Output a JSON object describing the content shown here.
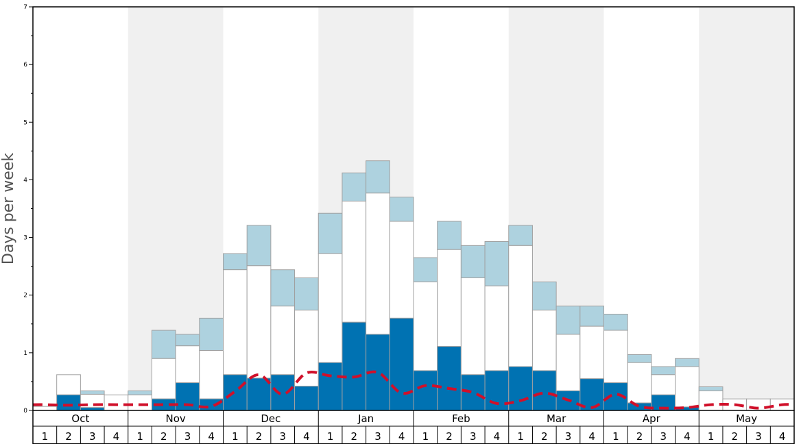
{
  "chart_data": {
    "type": "bar",
    "ylabel": "Days per week",
    "ylim": [
      0,
      7
    ],
    "yticks": [
      "0",
      "1",
      "2",
      "3",
      "4",
      "5",
      "6",
      "7"
    ],
    "months": [
      "Oct",
      "Nov",
      "Dec",
      "Jan",
      "Feb",
      "Mar",
      "Apr",
      "May"
    ],
    "week_labels": [
      "1",
      "2",
      "3",
      "4"
    ],
    "series": [
      {
        "values": [
          0.0,
          0.27,
          0.05,
          0.0,
          0.0,
          0.2,
          0.48,
          0.2,
          0.62,
          0.56,
          0.62,
          0.42,
          0.83,
          1.53,
          1.32,
          1.6,
          0.69,
          1.11,
          0.62,
          0.69,
          0.76,
          0.69,
          0.34,
          0.55,
          0.48,
          0.13,
          0.27,
          0.06,
          0.0,
          0.0,
          0.0,
          0.0
        ]
      },
      {
        "values": [
          0.07,
          0.62,
          0.28,
          0.27,
          0.27,
          0.9,
          1.12,
          1.04,
          2.44,
          2.51,
          1.81,
          1.74,
          2.72,
          3.63,
          3.77,
          3.28,
          2.23,
          2.79,
          2.3,
          2.16,
          2.86,
          1.74,
          1.32,
          1.46,
          1.39,
          0.83,
          0.62,
          0.76,
          0.34,
          0.2,
          0.2,
          0.2
        ]
      },
      {
        "values": [
          0.07,
          0.62,
          0.34,
          0.27,
          0.34,
          1.39,
          1.32,
          1.6,
          2.72,
          3.21,
          2.44,
          2.3,
          3.42,
          4.12,
          4.33,
          3.7,
          2.65,
          3.28,
          2.86,
          2.93,
          3.21,
          2.23,
          1.81,
          1.81,
          1.67,
          0.97,
          0.76,
          0.9,
          0.41,
          0.2,
          0.2,
          0.2
        ]
      },
      {
        "values": [
          0.1,
          0.09,
          0.1,
          0.1,
          0.1,
          0.1,
          0.1,
          0.07,
          0.33,
          0.62,
          0.28,
          0.65,
          0.6,
          0.58,
          0.66,
          0.3,
          0.43,
          0.38,
          0.31,
          0.12,
          0.17,
          0.3,
          0.18,
          0.05,
          0.28,
          0.07,
          0.04,
          0.05,
          0.1,
          0.1,
          0.04,
          0.1
        ]
      }
    ],
    "colors": {
      "low_fill": "#0072b2",
      "mid_fill": "#ffffff",
      "high_fill": "#aed2df",
      "bar_stroke": "#a0a0a0",
      "line": "#d0102a",
      "shade": "#f0f0f0",
      "axis": "#000000"
    }
  }
}
